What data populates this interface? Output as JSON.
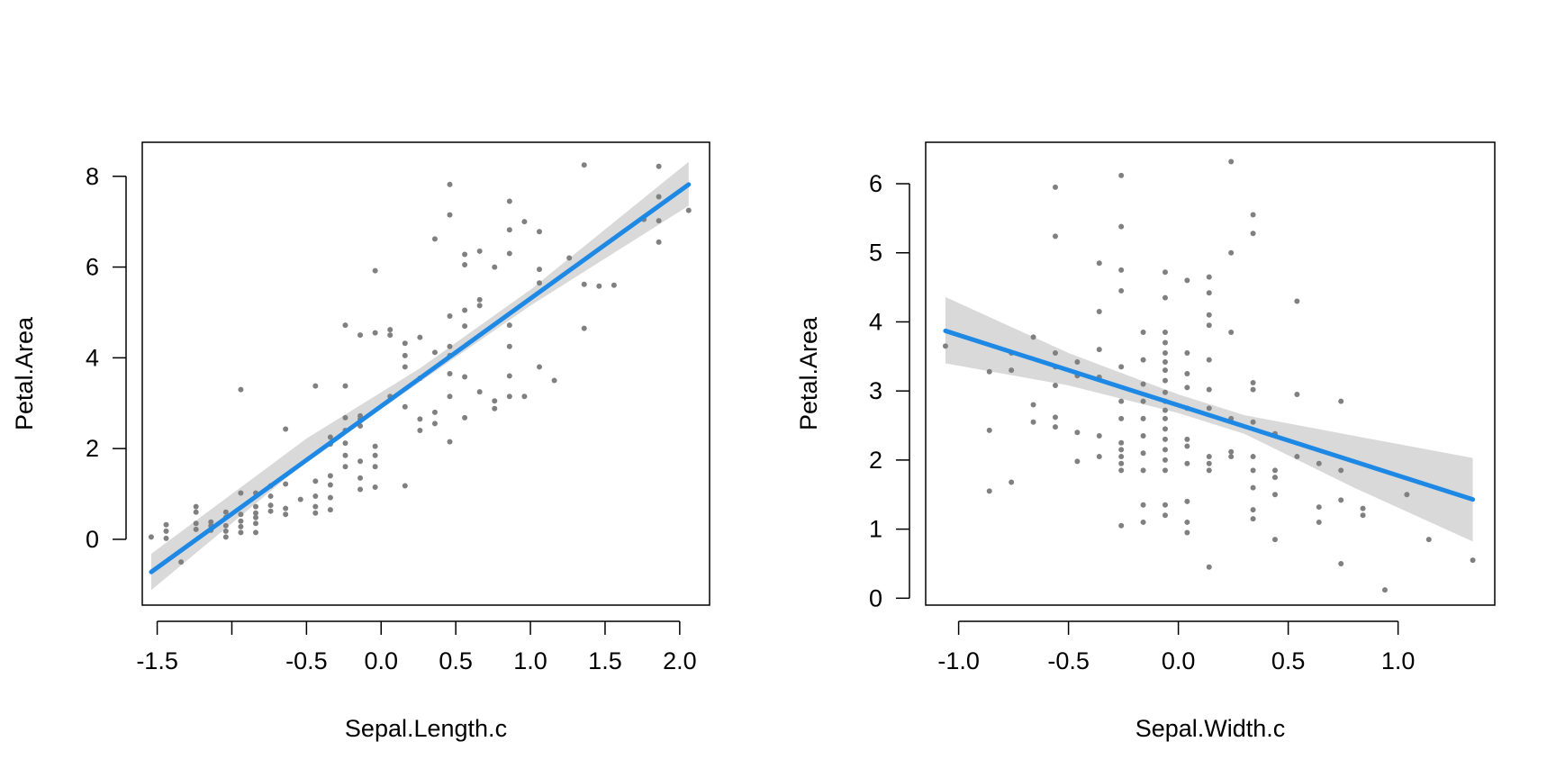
{
  "colors": {
    "points": "#808080",
    "fit_line": "#1E88E5",
    "ci_band": "#D9D9D9",
    "axis": "#000000"
  },
  "chart_data": [
    {
      "type": "scatter",
      "title": "",
      "xlabel": "Sepal.Length.c",
      "ylabel": "Petal.Area",
      "xlim": [
        -1.6,
        2.2
      ],
      "ylim": [
        -1.45,
        8.75
      ],
      "xticks": [
        -1.5,
        -1.0,
        -0.5,
        0.0,
        0.5,
        1.0,
        1.5,
        2.0
      ],
      "xtick_labels": [
        "-1.5",
        "",
        "-0.5",
        "0.0",
        "0.5",
        "1.0",
        "1.5",
        "2.0"
      ],
      "yticks": [
        0,
        2,
        4,
        6,
        8
      ],
      "ytick_labels": [
        "0",
        "2",
        "4",
        "6",
        "8"
      ],
      "fit": {
        "x": [
          -1.54,
          2.06
        ],
        "y": [
          -0.72,
          7.82
        ]
      },
      "ci_band": {
        "x": [
          -1.54,
          -0.5,
          0.26,
          1.0,
          2.06
        ],
        "lower": [
          -1.12,
          1.72,
          3.47,
          5.15,
          7.35
        ],
        "upper": [
          -0.32,
          2.22,
          3.77,
          5.5,
          8.32
        ]
      },
      "points": [
        [
          -1.54,
          0.05
        ],
        [
          -1.44,
          0.32
        ],
        [
          -1.44,
          0.18
        ],
        [
          -1.44,
          0.02
        ],
        [
          -1.34,
          -0.5
        ],
        [
          -1.24,
          0.72
        ],
        [
          -1.24,
          0.6
        ],
        [
          -1.24,
          0.35
        ],
        [
          -1.24,
          0.22
        ],
        [
          -1.14,
          0.38
        ],
        [
          -1.14,
          0.3
        ],
        [
          -1.14,
          0.2
        ],
        [
          -1.04,
          0.6
        ],
        [
          -1.04,
          0.48
        ],
        [
          -1.04,
          0.3
        ],
        [
          -1.04,
          0.18
        ],
        [
          -1.04,
          0.05
        ],
        [
          -0.94,
          1.02
        ],
        [
          -0.94,
          0.55
        ],
        [
          -0.94,
          0.4
        ],
        [
          -0.94,
          0.28
        ],
        [
          -0.94,
          0.15
        ],
        [
          -0.94,
          3.3
        ],
        [
          -0.84,
          1.02
        ],
        [
          -0.84,
          0.72
        ],
        [
          -0.84,
          0.58
        ],
        [
          -0.84,
          0.48
        ],
        [
          -0.84,
          0.35
        ],
        [
          -0.84,
          0.15
        ],
        [
          -0.74,
          1.18
        ],
        [
          -0.74,
          0.95
        ],
        [
          -0.74,
          0.75
        ],
        [
          -0.74,
          0.62
        ],
        [
          -0.64,
          2.43
        ],
        [
          -0.64,
          1.22
        ],
        [
          -0.64,
          0.68
        ],
        [
          -0.64,
          0.55
        ],
        [
          -0.54,
          0.88
        ],
        [
          -0.44,
          3.38
        ],
        [
          -0.44,
          1.28
        ],
        [
          -0.44,
          0.95
        ],
        [
          -0.44,
          0.72
        ],
        [
          -0.44,
          0.58
        ],
        [
          -0.34,
          2.25
        ],
        [
          -0.34,
          2.1
        ],
        [
          -0.34,
          1.4
        ],
        [
          -0.34,
          1.2
        ],
        [
          -0.34,
          0.92
        ],
        [
          -0.34,
          0.65
        ],
        [
          -0.24,
          4.72
        ],
        [
          -0.24,
          3.38
        ],
        [
          -0.24,
          2.68
        ],
        [
          -0.24,
          2.4
        ],
        [
          -0.24,
          2.12
        ],
        [
          -0.24,
          1.85
        ],
        [
          -0.24,
          1.6
        ],
        [
          -0.14,
          4.5
        ],
        [
          -0.14,
          2.72
        ],
        [
          -0.14,
          2.65
        ],
        [
          -0.14,
          2.5
        ],
        [
          -0.14,
          1.72
        ],
        [
          -0.14,
          1.35
        ],
        [
          -0.14,
          1.1
        ],
        [
          -0.04,
          5.92
        ],
        [
          -0.04,
          4.55
        ],
        [
          -0.04,
          2.05
        ],
        [
          -0.04,
          1.85
        ],
        [
          -0.04,
          1.6
        ],
        [
          -0.04,
          1.15
        ],
        [
          0.06,
          4.62
        ],
        [
          0.06,
          4.5
        ],
        [
          0.06,
          3.15
        ],
        [
          0.16,
          4.32
        ],
        [
          0.16,
          4.05
        ],
        [
          0.16,
          3.8
        ],
        [
          0.16,
          2.92
        ],
        [
          0.16,
          1.18
        ],
        [
          0.26,
          4.45
        ],
        [
          0.26,
          3.55
        ],
        [
          0.26,
          2.65
        ],
        [
          0.26,
          2.4
        ],
        [
          0.36,
          6.62
        ],
        [
          0.36,
          4.12
        ],
        [
          0.36,
          2.8
        ],
        [
          0.36,
          2.55
        ],
        [
          0.46,
          7.82
        ],
        [
          0.46,
          7.15
        ],
        [
          0.46,
          4.92
        ],
        [
          0.46,
          4.25
        ],
        [
          0.46,
          4.05
        ],
        [
          0.46,
          3.65
        ],
        [
          0.46,
          3.15
        ],
        [
          0.46,
          2.15
        ],
        [
          0.56,
          6.28
        ],
        [
          0.56,
          6.05
        ],
        [
          0.56,
          5.05
        ],
        [
          0.56,
          4.7
        ],
        [
          0.56,
          3.58
        ],
        [
          0.56,
          2.68
        ],
        [
          0.66,
          6.35
        ],
        [
          0.66,
          5.28
        ],
        [
          0.66,
          5.15
        ],
        [
          0.66,
          3.25
        ],
        [
          0.76,
          6.0
        ],
        [
          0.76,
          3.05
        ],
        [
          0.76,
          2.88
        ],
        [
          0.86,
          7.45
        ],
        [
          0.86,
          6.82
        ],
        [
          0.86,
          6.3
        ],
        [
          0.86,
          4.72
        ],
        [
          0.86,
          4.25
        ],
        [
          0.86,
          3.6
        ],
        [
          0.86,
          3.15
        ],
        [
          0.96,
          7.0
        ],
        [
          0.96,
          3.15
        ],
        [
          1.06,
          6.78
        ],
        [
          1.06,
          5.95
        ],
        [
          1.06,
          5.65
        ],
        [
          1.06,
          3.8
        ],
        [
          1.16,
          3.5
        ],
        [
          1.26,
          6.2
        ],
        [
          1.36,
          8.25
        ],
        [
          1.36,
          5.62
        ],
        [
          1.36,
          4.65
        ],
        [
          1.46,
          5.58
        ],
        [
          1.56,
          5.6
        ],
        [
          1.76,
          7.05
        ],
        [
          1.86,
          8.22
        ],
        [
          1.86,
          7.55
        ],
        [
          1.86,
          7.02
        ],
        [
          1.86,
          6.55
        ],
        [
          2.06,
          7.25
        ]
      ]
    },
    {
      "type": "scatter",
      "title": "",
      "xlabel": "Sepal.Width.c",
      "ylabel": "Petal.Area",
      "xlim": [
        -1.15,
        1.44
      ],
      "ylim": [
        -0.1,
        6.6
      ],
      "xticks": [
        -1.0,
        -0.5,
        0.0,
        0.5,
        1.0
      ],
      "xtick_labels": [
        "-1.0",
        "-0.5",
        "0.0",
        "0.5",
        "1.0"
      ],
      "yticks": [
        0,
        1,
        2,
        3,
        4,
        5,
        6
      ],
      "ytick_labels": [
        "0",
        "1",
        "2",
        "3",
        "4",
        "5",
        "6"
      ],
      "fit": {
        "x": [
          -1.06,
          1.34
        ],
        "y": [
          3.87,
          1.43
        ]
      },
      "ci_band": {
        "x": [
          -1.06,
          -0.5,
          0.0,
          0.3,
          0.8,
          1.34
        ],
        "lower": [
          3.4,
          3.08,
          2.68,
          2.38,
          1.6,
          0.82
        ],
        "upper": [
          4.36,
          3.55,
          2.95,
          2.65,
          2.35,
          2.03
        ]
      },
      "points": [
        [
          -1.06,
          3.65
        ],
        [
          -0.86,
          3.28
        ],
        [
          -0.86,
          2.43
        ],
        [
          -0.86,
          1.55
        ],
        [
          -0.76,
          3.55
        ],
        [
          -0.76,
          3.3
        ],
        [
          -0.76,
          1.68
        ],
        [
          -0.66,
          3.78
        ],
        [
          -0.66,
          2.8
        ],
        [
          -0.66,
          2.55
        ],
        [
          -0.56,
          5.95
        ],
        [
          -0.56,
          5.24
        ],
        [
          -0.56,
          3.55
        ],
        [
          -0.56,
          3.35
        ],
        [
          -0.56,
          3.08
        ],
        [
          -0.56,
          2.62
        ],
        [
          -0.56,
          2.48
        ],
        [
          -0.46,
          3.42
        ],
        [
          -0.46,
          3.22
        ],
        [
          -0.46,
          2.4
        ],
        [
          -0.46,
          1.98
        ],
        [
          -0.36,
          4.85
        ],
        [
          -0.36,
          4.15
        ],
        [
          -0.36,
          3.6
        ],
        [
          -0.36,
          3.2
        ],
        [
          -0.36,
          2.35
        ],
        [
          -0.36,
          2.05
        ],
        [
          -0.26,
          6.12
        ],
        [
          -0.26,
          5.38
        ],
        [
          -0.26,
          4.75
        ],
        [
          -0.26,
          4.45
        ],
        [
          -0.26,
          3.35
        ],
        [
          -0.26,
          2.85
        ],
        [
          -0.26,
          2.6
        ],
        [
          -0.26,
          2.25
        ],
        [
          -0.26,
          2.15
        ],
        [
          -0.26,
          2.05
        ],
        [
          -0.26,
          1.95
        ],
        [
          -0.26,
          1.85
        ],
        [
          -0.26,
          1.05
        ],
        [
          -0.16,
          3.85
        ],
        [
          -0.16,
          3.45
        ],
        [
          -0.16,
          3.1
        ],
        [
          -0.16,
          2.85
        ],
        [
          -0.16,
          2.6
        ],
        [
          -0.16,
          2.35
        ],
        [
          -0.16,
          2.1
        ],
        [
          -0.16,
          1.85
        ],
        [
          -0.16,
          1.35
        ],
        [
          -0.16,
          1.1
        ],
        [
          -0.06,
          4.72
        ],
        [
          -0.06,
          4.35
        ],
        [
          -0.06,
          3.85
        ],
        [
          -0.06,
          3.7
        ],
        [
          -0.06,
          3.55
        ],
        [
          -0.06,
          3.42
        ],
        [
          -0.06,
          3.3
        ],
        [
          -0.06,
          3.15
        ],
        [
          -0.06,
          2.98
        ],
        [
          -0.06,
          2.85
        ],
        [
          -0.06,
          2.72
        ],
        [
          -0.06,
          2.6
        ],
        [
          -0.06,
          2.45
        ],
        [
          -0.06,
          2.3
        ],
        [
          -0.06,
          2.15
        ],
        [
          -0.06,
          2.0
        ],
        [
          -0.06,
          1.85
        ],
        [
          -0.06,
          1.35
        ],
        [
          -0.06,
          1.2
        ],
        [
          0.04,
          4.6
        ],
        [
          0.04,
          3.55
        ],
        [
          0.04,
          3.25
        ],
        [
          0.04,
          3.05
        ],
        [
          0.04,
          2.75
        ],
        [
          0.04,
          2.3
        ],
        [
          0.04,
          2.2
        ],
        [
          0.04,
          1.95
        ],
        [
          0.04,
          1.4
        ],
        [
          0.04,
          1.1
        ],
        [
          0.04,
          0.95
        ],
        [
          0.14,
          4.65
        ],
        [
          0.14,
          4.42
        ],
        [
          0.14,
          4.1
        ],
        [
          0.14,
          3.95
        ],
        [
          0.14,
          3.45
        ],
        [
          0.14,
          3.02
        ],
        [
          0.14,
          2.75
        ],
        [
          0.14,
          2.05
        ],
        [
          0.14,
          1.95
        ],
        [
          0.14,
          1.85
        ],
        [
          0.14,
          0.45
        ],
        [
          0.24,
          6.32
        ],
        [
          0.24,
          5.0
        ],
        [
          0.24,
          3.85
        ],
        [
          0.24,
          2.6
        ],
        [
          0.24,
          2.12
        ],
        [
          0.24,
          2.05
        ],
        [
          0.34,
          5.55
        ],
        [
          0.34,
          5.28
        ],
        [
          0.34,
          3.12
        ],
        [
          0.34,
          3.02
        ],
        [
          0.34,
          2.55
        ],
        [
          0.34,
          2.05
        ],
        [
          0.34,
          1.85
        ],
        [
          0.34,
          1.6
        ],
        [
          0.34,
          1.28
        ],
        [
          0.34,
          1.15
        ],
        [
          0.44,
          2.38
        ],
        [
          0.44,
          1.85
        ],
        [
          0.44,
          1.75
        ],
        [
          0.44,
          1.5
        ],
        [
          0.44,
          0.85
        ],
        [
          0.54,
          4.3
        ],
        [
          0.54,
          2.95
        ],
        [
          0.54,
          2.05
        ],
        [
          0.64,
          1.95
        ],
        [
          0.64,
          1.32
        ],
        [
          0.64,
          1.1
        ],
        [
          0.74,
          2.85
        ],
        [
          0.74,
          1.85
        ],
        [
          0.74,
          1.42
        ],
        [
          0.74,
          0.5
        ],
        [
          0.84,
          1.3
        ],
        [
          0.84,
          1.2
        ],
        [
          0.94,
          0.12
        ],
        [
          1.04,
          1.5
        ],
        [
          1.14,
          0.85
        ],
        [
          1.34,
          0.55
        ]
      ]
    }
  ]
}
